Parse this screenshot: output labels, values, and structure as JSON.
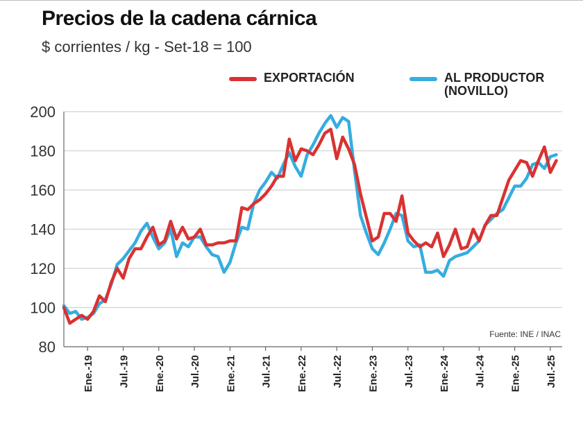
{
  "chart_data": {
    "type": "line",
    "title": "Precios de la cadena cárnica",
    "subtitle": "$ corrientes / kg - Set-18 = 100",
    "source": "Fuente: INE / INAC",
    "ylim": [
      80,
      200
    ],
    "yticks": [
      80,
      100,
      120,
      140,
      160,
      180,
      200
    ],
    "xlim": [
      0,
      84
    ],
    "xticks": [
      {
        "x": 4,
        "label": "Ene.-19"
      },
      {
        "x": 10,
        "label": "Jul.-19"
      },
      {
        "x": 16,
        "label": "Ene.-20"
      },
      {
        "x": 22,
        "label": "Jul.-20"
      },
      {
        "x": 28,
        "label": "Ene.-21"
      },
      {
        "x": 34,
        "label": "Jul.-21"
      },
      {
        "x": 40,
        "label": "Ene.-22"
      },
      {
        "x": 46,
        "label": "Jul.-22"
      },
      {
        "x": 52,
        "label": "Ene.-23"
      },
      {
        "x": 58,
        "label": "Jul.-23"
      },
      {
        "x": 64,
        "label": "Ene.-24"
      },
      {
        "x": 70,
        "label": "Jul.-24"
      },
      {
        "x": 76,
        "label": "Ene.-25"
      },
      {
        "x": 82,
        "label": "Jul.-25"
      }
    ],
    "grid": "horizontal",
    "series": [
      {
        "name": "EXPORTACIÓN",
        "color": "#d93232",
        "points": [
          [
            0,
            100
          ],
          [
            1,
            92
          ],
          [
            2,
            94
          ],
          [
            3,
            96
          ],
          [
            4,
            94
          ],
          [
            5,
            98
          ],
          [
            6,
            106
          ],
          [
            7,
            103
          ],
          [
            8,
            113
          ],
          [
            9,
            120
          ],
          [
            10,
            115
          ],
          [
            11,
            125
          ],
          [
            12,
            130
          ],
          [
            13,
            130
          ],
          [
            14,
            136
          ],
          [
            15,
            141
          ],
          [
            16,
            132
          ],
          [
            17,
            134
          ],
          [
            18,
            144
          ],
          [
            19,
            135
          ],
          [
            20,
            141
          ],
          [
            21,
            135
          ],
          [
            22,
            136
          ],
          [
            23,
            140
          ],
          [
            24,
            132
          ],
          [
            25,
            132
          ],
          [
            26,
            133
          ],
          [
            27,
            133
          ],
          [
            28,
            134
          ],
          [
            29,
            134
          ],
          [
            30,
            151
          ],
          [
            31,
            150
          ],
          [
            32,
            153
          ],
          [
            33,
            155
          ],
          [
            34,
            158
          ],
          [
            35,
            162
          ],
          [
            36,
            167
          ],
          [
            37,
            167
          ],
          [
            38,
            186
          ],
          [
            39,
            175
          ],
          [
            40,
            181
          ],
          [
            41,
            180
          ],
          [
            42,
            178
          ],
          [
            43,
            183
          ],
          [
            44,
            189
          ],
          [
            45,
            191
          ],
          [
            46,
            176
          ],
          [
            47,
            187
          ],
          [
            48,
            181
          ],
          [
            49,
            173
          ],
          [
            50,
            158
          ],
          [
            51,
            146
          ],
          [
            52,
            134
          ],
          [
            53,
            136
          ],
          [
            54,
            148
          ],
          [
            55,
            148
          ],
          [
            56,
            144
          ],
          [
            57,
            157
          ],
          [
            58,
            138
          ],
          [
            59,
            134
          ],
          [
            60,
            131
          ],
          [
            61,
            133
          ],
          [
            62,
            131
          ],
          [
            63,
            138
          ],
          [
            64,
            126
          ],
          [
            65,
            132
          ],
          [
            66,
            140
          ],
          [
            67,
            130
          ],
          [
            68,
            131
          ],
          [
            69,
            140
          ],
          [
            70,
            134
          ],
          [
            71,
            142
          ],
          [
            72,
            147
          ],
          [
            73,
            147
          ],
          [
            74,
            156
          ],
          [
            75,
            165
          ],
          [
            76,
            170
          ],
          [
            77,
            175
          ],
          [
            78,
            174
          ],
          [
            79,
            167
          ],
          [
            80,
            175
          ],
          [
            81,
            182
          ],
          [
            82,
            169
          ],
          [
            83,
            175
          ]
        ]
      },
      {
        "name": "AL PRODUCTOR (NOVILLO)",
        "label_lines": [
          "AL PRODUCTOR",
          "(NOVILLO)"
        ],
        "color": "#35ade0",
        "points": [
          [
            0,
            101
          ],
          [
            1,
            97
          ],
          [
            2,
            98
          ],
          [
            3,
            94
          ],
          [
            4,
            95
          ],
          [
            5,
            97
          ],
          [
            6,
            102
          ],
          [
            7,
            104
          ],
          [
            8,
            112
          ],
          [
            9,
            122
          ],
          [
            10,
            125
          ],
          [
            11,
            129
          ],
          [
            12,
            133
          ],
          [
            13,
            139
          ],
          [
            14,
            143
          ],
          [
            15,
            136
          ],
          [
            16,
            130
          ],
          [
            17,
            133
          ],
          [
            18,
            140
          ],
          [
            19,
            126
          ],
          [
            20,
            133
          ],
          [
            21,
            131
          ],
          [
            22,
            136
          ],
          [
            23,
            136
          ],
          [
            24,
            131
          ],
          [
            25,
            127
          ],
          [
            26,
            126
          ],
          [
            27,
            118
          ],
          [
            28,
            123
          ],
          [
            29,
            133
          ],
          [
            30,
            141
          ],
          [
            31,
            140
          ],
          [
            32,
            153
          ],
          [
            33,
            160
          ],
          [
            34,
            164
          ],
          [
            35,
            169
          ],
          [
            36,
            166
          ],
          [
            37,
            173
          ],
          [
            38,
            179
          ],
          [
            39,
            172
          ],
          [
            40,
            167
          ],
          [
            41,
            178
          ],
          [
            42,
            183
          ],
          [
            43,
            189
          ],
          [
            44,
            194
          ],
          [
            45,
            198
          ],
          [
            46,
            192
          ],
          [
            47,
            197
          ],
          [
            48,
            195
          ],
          [
            49,
            170
          ],
          [
            50,
            147
          ],
          [
            51,
            138
          ],
          [
            52,
            130
          ],
          [
            53,
            127
          ],
          [
            54,
            133
          ],
          [
            55,
            140
          ],
          [
            56,
            148
          ],
          [
            57,
            147
          ],
          [
            58,
            134
          ],
          [
            59,
            131
          ],
          [
            60,
            132
          ],
          [
            61,
            118
          ],
          [
            62,
            118
          ],
          [
            63,
            119
          ],
          [
            64,
            116
          ],
          [
            65,
            124
          ],
          [
            66,
            126
          ],
          [
            67,
            127
          ],
          [
            68,
            128
          ],
          [
            69,
            131
          ],
          [
            70,
            134
          ],
          [
            71,
            142
          ],
          [
            72,
            145
          ],
          [
            73,
            148
          ],
          [
            74,
            150
          ],
          [
            75,
            156
          ],
          [
            76,
            162
          ],
          [
            77,
            162
          ],
          [
            78,
            166
          ],
          [
            79,
            173
          ],
          [
            80,
            174
          ],
          [
            81,
            171
          ],
          [
            82,
            177
          ],
          [
            83,
            178
          ]
        ]
      }
    ]
  }
}
